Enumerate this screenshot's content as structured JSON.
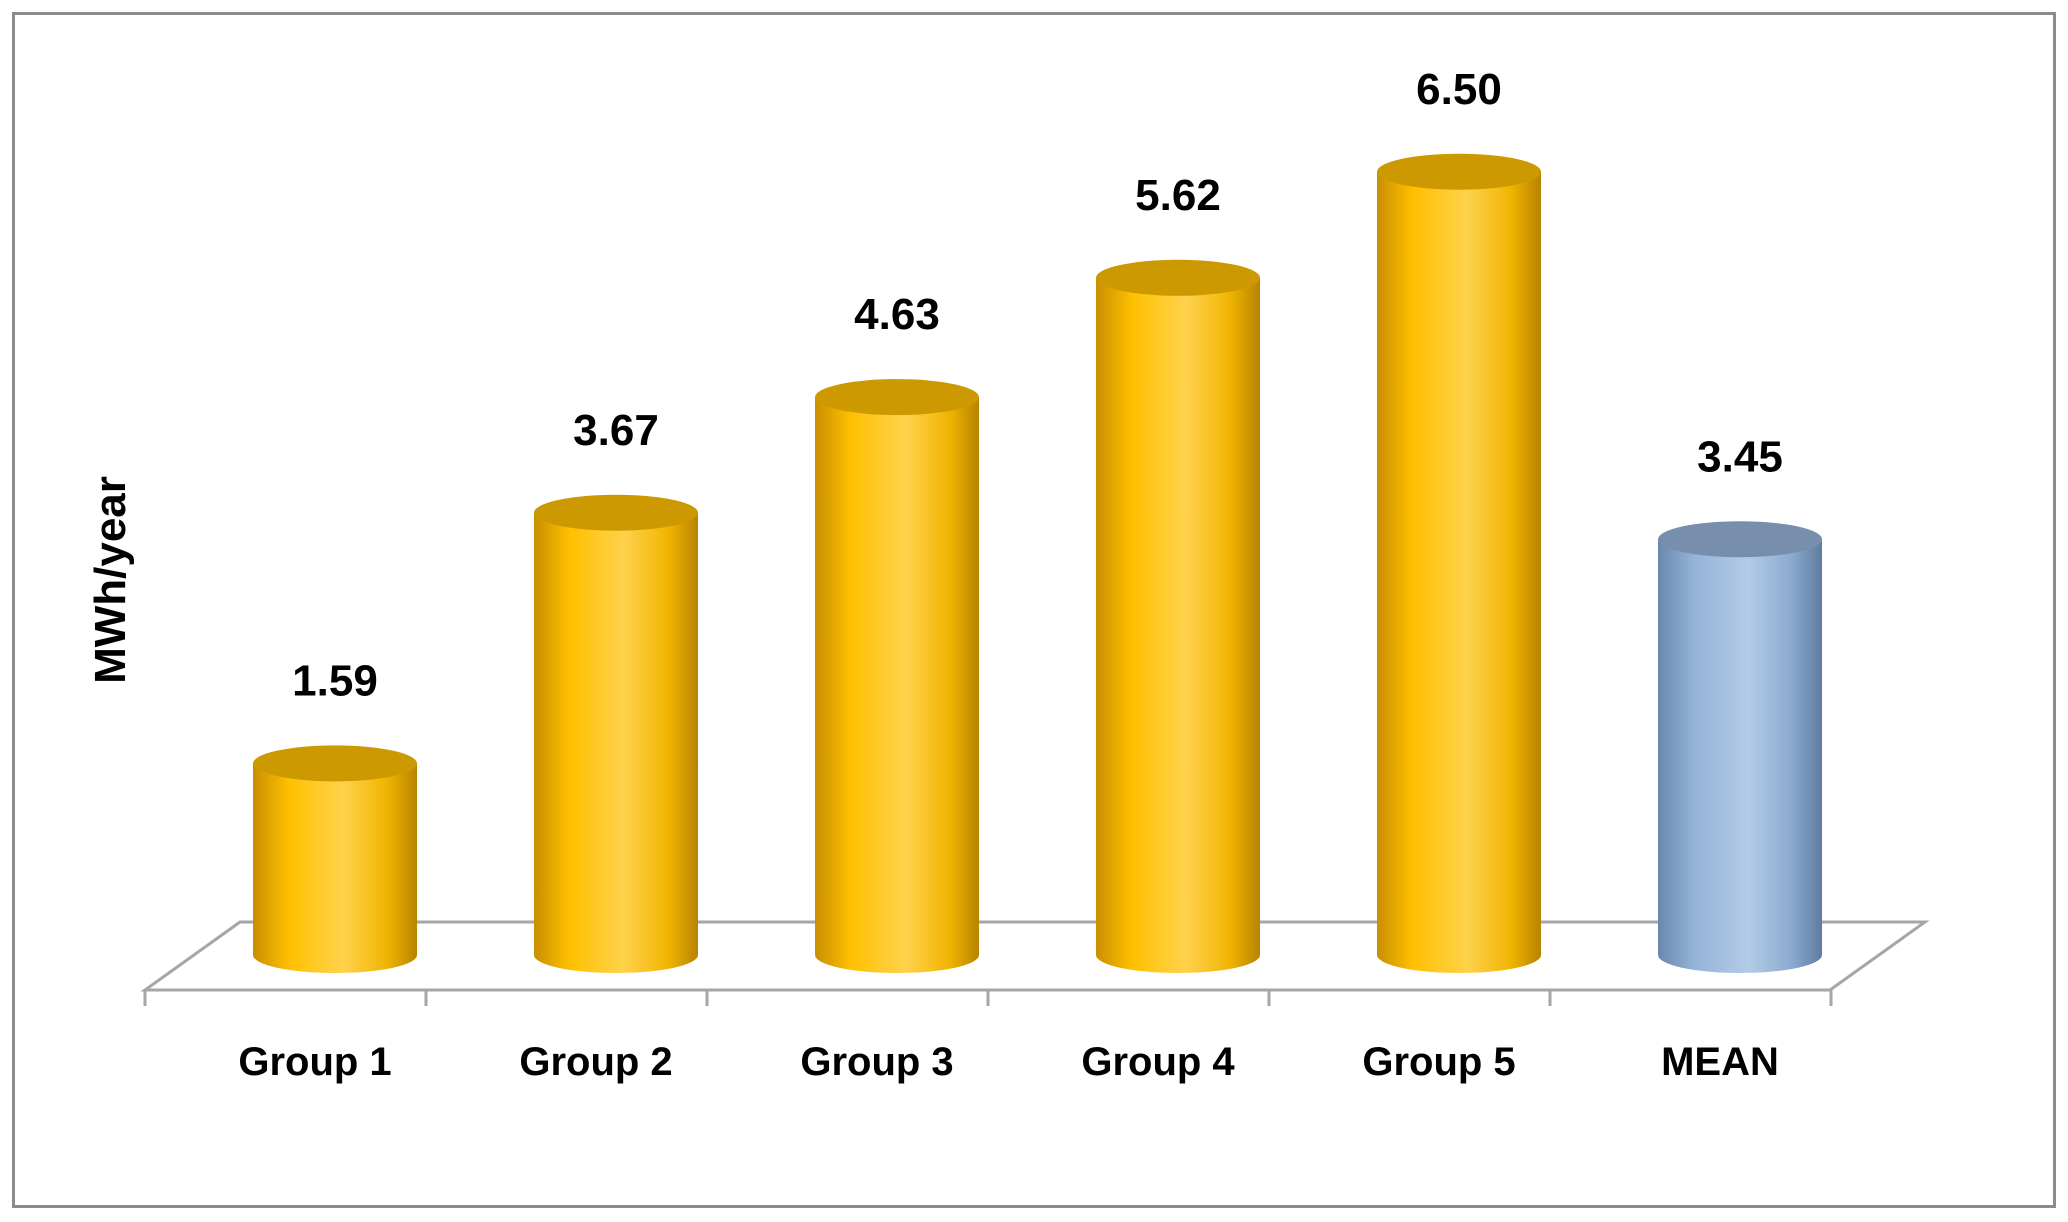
{
  "chart_data": {
    "type": "bar",
    "style": "3d-cylinder",
    "title": "",
    "xlabel": "",
    "ylabel": "MWh/year",
    "categories": [
      "Group 1",
      "Group 2",
      "Group 3",
      "Group 4",
      "Group 5",
      "MEAN"
    ],
    "values": [
      1.59,
      3.67,
      4.63,
      5.62,
      6.5,
      3.45
    ],
    "value_labels": [
      "1.59",
      "3.67",
      "4.63",
      "5.62",
      "6.50",
      "3.45"
    ],
    "bar_colors": [
      "#ffc000",
      "#ffc000",
      "#ffc000",
      "#ffc000",
      "#ffc000",
      "#95b3d7"
    ],
    "ylim": [
      0,
      7
    ],
    "grid": false,
    "legend": "none"
  }
}
